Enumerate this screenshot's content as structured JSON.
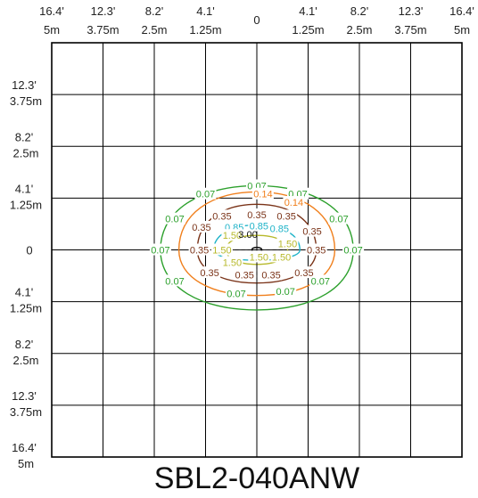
{
  "chart_data": {
    "type": "contour",
    "title": "SBL2-040ANW",
    "x_ticks": [
      {
        "ft": "16.4'",
        "m": "5m"
      },
      {
        "ft": "12.3'",
        "m": "3.75m"
      },
      {
        "ft": "8.2'",
        "m": "2.5m"
      },
      {
        "ft": "4.1'",
        "m": "1.25m"
      },
      {
        "ft": "",
        "m": "0"
      },
      {
        "ft": "4.1'",
        "m": "1.25m"
      },
      {
        "ft": "8.2'",
        "m": "2.5m"
      },
      {
        "ft": "12.3'",
        "m": "3.75m"
      },
      {
        "ft": "16.4'",
        "m": "5m"
      }
    ],
    "y_ticks": [
      {
        "ft": "",
        "m": ""
      },
      {
        "ft": "12.3'",
        "m": "3.75m"
      },
      {
        "ft": "8.2'",
        "m": "2.5m"
      },
      {
        "ft": "4.1'",
        "m": "1.25m"
      },
      {
        "ft": "",
        "m": "0"
      },
      {
        "ft": "4.1'",
        "m": "1.25m"
      },
      {
        "ft": "8.2'",
        "m": "2.5m"
      },
      {
        "ft": "12.3'",
        "m": "3.75m"
      },
      {
        "ft": "16.4'",
        "m": "5m"
      }
    ],
    "xlim": [
      -5,
      5
    ],
    "ylim": [
      -5,
      5
    ],
    "grid": true,
    "center_label": "3.00",
    "contours": [
      {
        "value": "0.07",
        "color": "#2ca02c",
        "half_width": 2.35,
        "top": 1.55,
        "bottom": -1.45,
        "labels": [
          [
            -1.25,
            1.35
          ],
          [
            0.0,
            1.55
          ],
          [
            1.0,
            1.35
          ],
          [
            -2.0,
            0.75
          ],
          [
            2.0,
            0.75
          ],
          [
            -2.35,
            0.0
          ],
          [
            2.35,
            0.0
          ],
          [
            -2.0,
            -0.75
          ],
          [
            1.55,
            -0.75
          ],
          [
            -0.5,
            -1.05
          ],
          [
            0.7,
            -1.0
          ]
        ]
      },
      {
        "value": "0.14",
        "color": "#f07f1c",
        "half_width": 1.9,
        "top": 1.4,
        "bottom": -1.1,
        "labels": [
          [
            0.15,
            1.35
          ],
          [
            0.9,
            1.15
          ]
        ]
      },
      {
        "value": "0.35",
        "color": "#7a3318",
        "half_width": 1.45,
        "top": 1.1,
        "bottom": -0.8,
        "labels": [
          [
            -0.85,
            0.82
          ],
          [
            0.0,
            0.85
          ],
          [
            0.72,
            0.82
          ],
          [
            -1.35,
            0.55
          ],
          [
            1.35,
            0.45
          ],
          [
            -1.4,
            0.0
          ],
          [
            1.45,
            0.0
          ],
          [
            -1.15,
            -0.55
          ],
          [
            -0.3,
            -0.6
          ],
          [
            0.35,
            -0.6
          ],
          [
            1.15,
            -0.55
          ]
        ]
      },
      {
        "value": "0.85",
        "color": "#1fb3c8",
        "half_width": 1.05,
        "top": 0.6,
        "bottom": -0.25,
        "labels": [
          [
            -0.55,
            0.55
          ],
          [
            0.05,
            0.58
          ],
          [
            0.55,
            0.52
          ]
        ]
      },
      {
        "value": "1.50",
        "color": "#b7b92a",
        "half_width": 0.75,
        "top": 0.35,
        "bottom": -0.35,
        "labels": [
          [
            -0.6,
            0.35
          ],
          [
            -0.85,
            0.0
          ],
          [
            -0.6,
            -0.3
          ],
          [
            0.05,
            -0.17
          ],
          [
            0.6,
            -0.17
          ],
          [
            0.75,
            0.15
          ]
        ]
      },
      {
        "value": "3.00",
        "color": "#111111",
        "half_width": 0.12,
        "top": 0.06,
        "bottom": -0.06,
        "labels": []
      }
    ]
  }
}
